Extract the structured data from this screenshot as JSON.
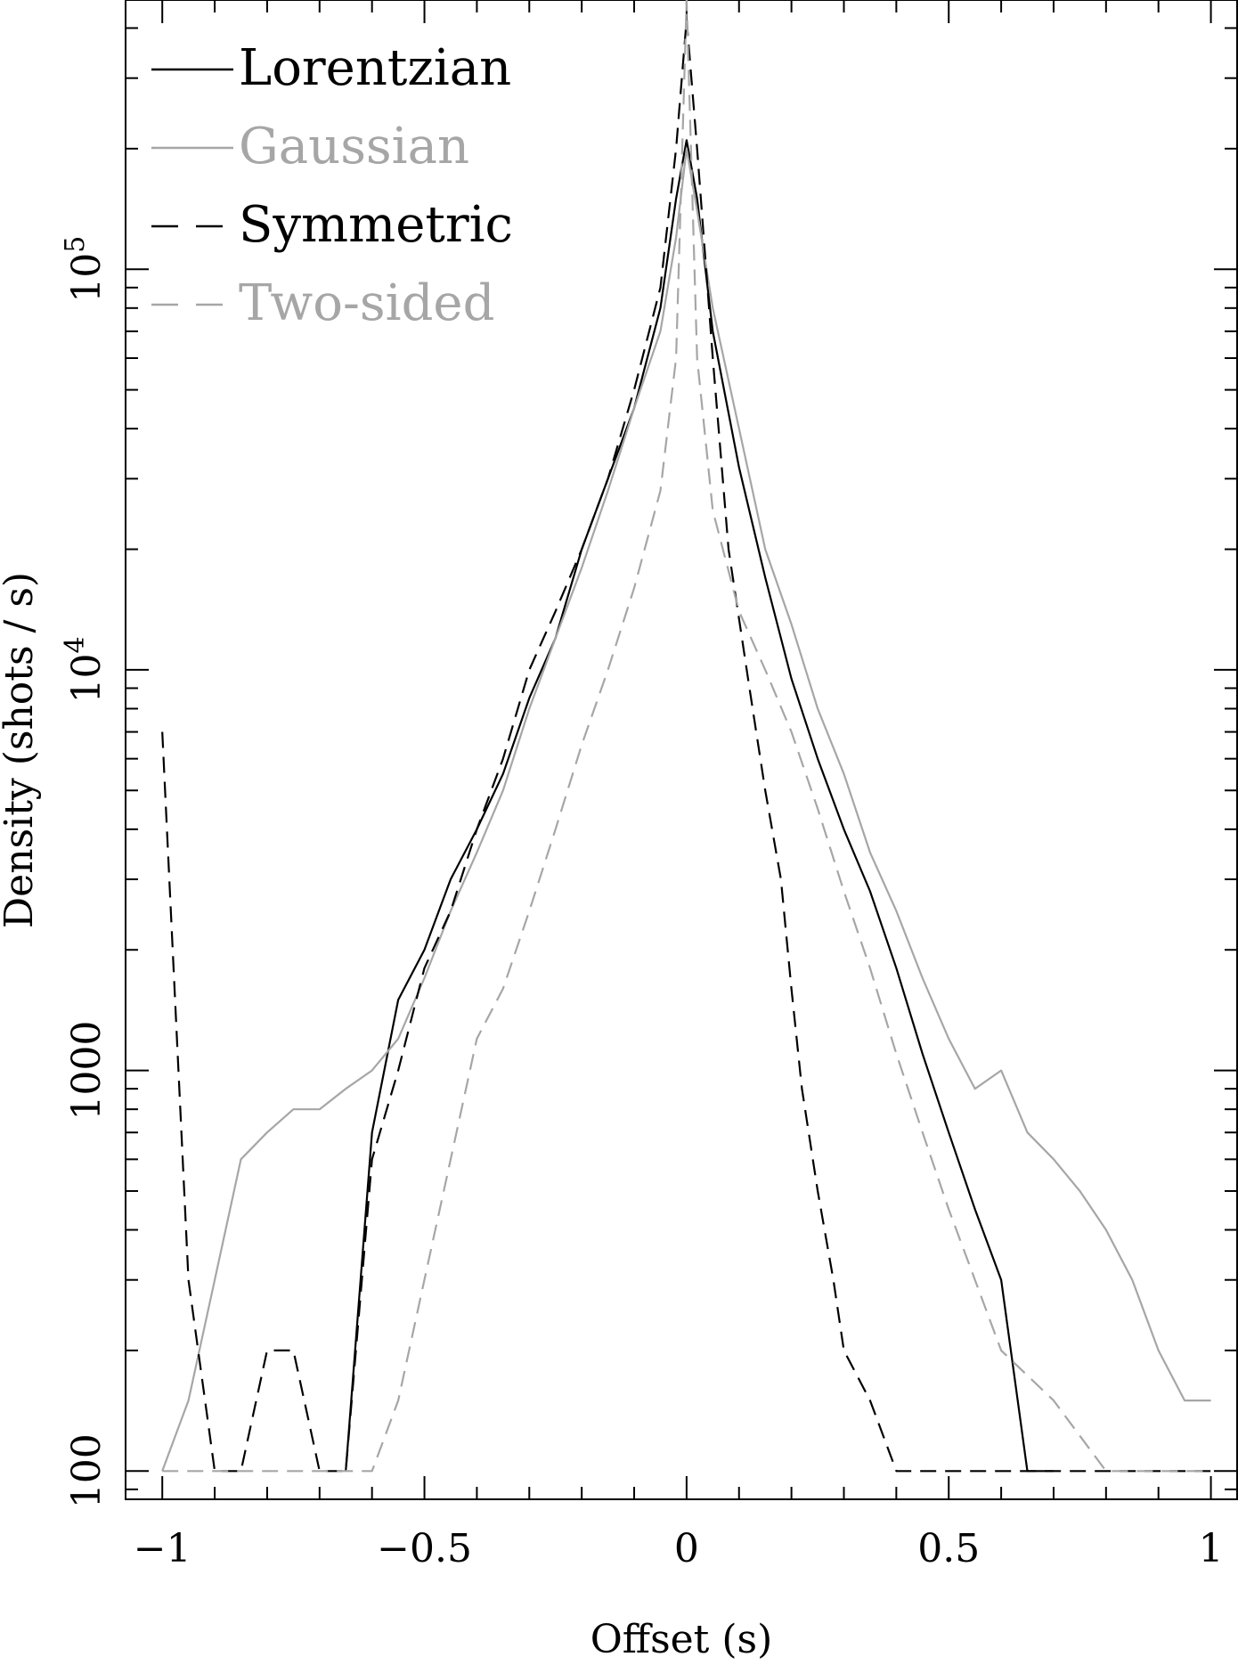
{
  "chart_data": {
    "type": "line",
    "title": "",
    "xlabel": "Offset (s)",
    "ylabel": "Density (shots / s)",
    "xlim": [
      -1.07,
      1.05
    ],
    "ylim": [
      85,
      470000
    ],
    "yscale": "log",
    "grid": false,
    "legend_position": "top-left",
    "x_ticks": [
      {
        "value": -1,
        "label": "−1"
      },
      {
        "value": -0.5,
        "label": "−0.5"
      },
      {
        "value": 0,
        "label": "0"
      },
      {
        "value": 0.5,
        "label": "0.5"
      },
      {
        "value": 1,
        "label": "1"
      }
    ],
    "y_ticks": [
      {
        "value": 100,
        "label": "100",
        "sup": ""
      },
      {
        "value": 1000,
        "label": "1000",
        "sup": ""
      },
      {
        "value": 10000,
        "label": "10",
        "sup": "4"
      },
      {
        "value": 100000,
        "label": "10",
        "sup": "5"
      }
    ],
    "series": [
      {
        "name": "Lorentzian",
        "color": "#000000",
        "dash": "none",
        "x": [
          -0.65,
          -0.6,
          -0.55,
          -0.5,
          -0.45,
          -0.4,
          -0.35,
          -0.3,
          -0.25,
          -0.2,
          -0.15,
          -0.1,
          -0.05,
          -0.02,
          0,
          0.02,
          0.05,
          0.1,
          0.15,
          0.2,
          0.25,
          0.3,
          0.35,
          0.4,
          0.45,
          0.5,
          0.55,
          0.6,
          0.65,
          0.7
        ],
        "y": [
          100,
          700,
          1500,
          2000,
          3000,
          4000,
          5500,
          8500,
          12000,
          20000,
          30000,
          45000,
          80000,
          150000,
          210000,
          150000,
          70000,
          32000,
          17000,
          9500,
          6000,
          4000,
          2800,
          1800,
          1100,
          700,
          450,
          300,
          100,
          100
        ]
      },
      {
        "name": "Gaussian",
        "color": "#a6a6a6",
        "dash": "none",
        "x": [
          -1,
          -0.95,
          -0.9,
          -0.85,
          -0.8,
          -0.75,
          -0.7,
          -0.65,
          -0.6,
          -0.55,
          -0.5,
          -0.45,
          -0.4,
          -0.35,
          -0.3,
          -0.25,
          -0.2,
          -0.15,
          -0.1,
          -0.05,
          -0.02,
          0,
          0.02,
          0.05,
          0.1,
          0.15,
          0.2,
          0.25,
          0.3,
          0.35,
          0.4,
          0.45,
          0.5,
          0.55,
          0.6,
          0.65,
          0.7,
          0.75,
          0.8,
          0.85,
          0.9,
          0.95,
          1
        ],
        "y": [
          100,
          150,
          300,
          600,
          700,
          800,
          800,
          900,
          1000,
          1200,
          1700,
          2500,
          3500,
          5000,
          8000,
          12000,
          18000,
          28000,
          45000,
          70000,
          120000,
          200000,
          140000,
          80000,
          40000,
          20000,
          13000,
          8000,
          5500,
          3500,
          2500,
          1700,
          1200,
          900,
          1000,
          700,
          600,
          500,
          400,
          300,
          200,
          150,
          150
        ]
      },
      {
        "name": "Symmetric",
        "color": "#000000",
        "dash": "18 10",
        "x": [
          -1,
          -0.95,
          -0.9,
          -0.85,
          -0.8,
          -0.75,
          -0.7,
          -0.65,
          -0.6,
          -0.55,
          -0.5,
          -0.45,
          -0.4,
          -0.35,
          -0.3,
          -0.25,
          -0.2,
          -0.15,
          -0.1,
          -0.05,
          -0.02,
          0,
          0.02,
          0.05,
          0.08,
          0.12,
          0.15,
          0.18,
          0.2,
          0.22,
          0.25,
          0.28,
          0.3,
          0.35,
          0.4,
          0.45,
          0.5,
          0.6,
          0.7,
          0.8,
          0.9,
          1
        ],
        "y": [
          7000,
          300,
          100,
          100,
          200,
          200,
          100,
          100,
          600,
          1000,
          1800,
          2500,
          4000,
          6000,
          10000,
          14000,
          20000,
          30000,
          50000,
          90000,
          200000,
          420000,
          200000,
          60000,
          20000,
          9000,
          5000,
          3000,
          1600,
          900,
          500,
          300,
          200,
          150,
          100,
          100,
          100,
          100,
          100,
          100,
          100,
          100
        ]
      },
      {
        "name": "Two-sided",
        "color": "#a6a6a6",
        "dash": "18 10",
        "x": [
          -1,
          -0.9,
          -0.8,
          -0.7,
          -0.6,
          -0.55,
          -0.5,
          -0.45,
          -0.4,
          -0.35,
          -0.3,
          -0.25,
          -0.2,
          -0.15,
          -0.1,
          -0.05,
          -0.02,
          0,
          0.02,
          0.05,
          0.1,
          0.15,
          0.2,
          0.25,
          0.3,
          0.35,
          0.4,
          0.45,
          0.5,
          0.55,
          0.6,
          0.7,
          0.8,
          0.9,
          1
        ],
        "y": [
          100,
          100,
          100,
          100,
          100,
          150,
          300,
          600,
          1200,
          1600,
          2500,
          4000,
          6500,
          10000,
          16000,
          28000,
          60000,
          470000,
          60000,
          25000,
          14000,
          10000,
          7000,
          4500,
          2800,
          1800,
          1100,
          700,
          450,
          300,
          200,
          150,
          100,
          100,
          100
        ]
      }
    ]
  }
}
